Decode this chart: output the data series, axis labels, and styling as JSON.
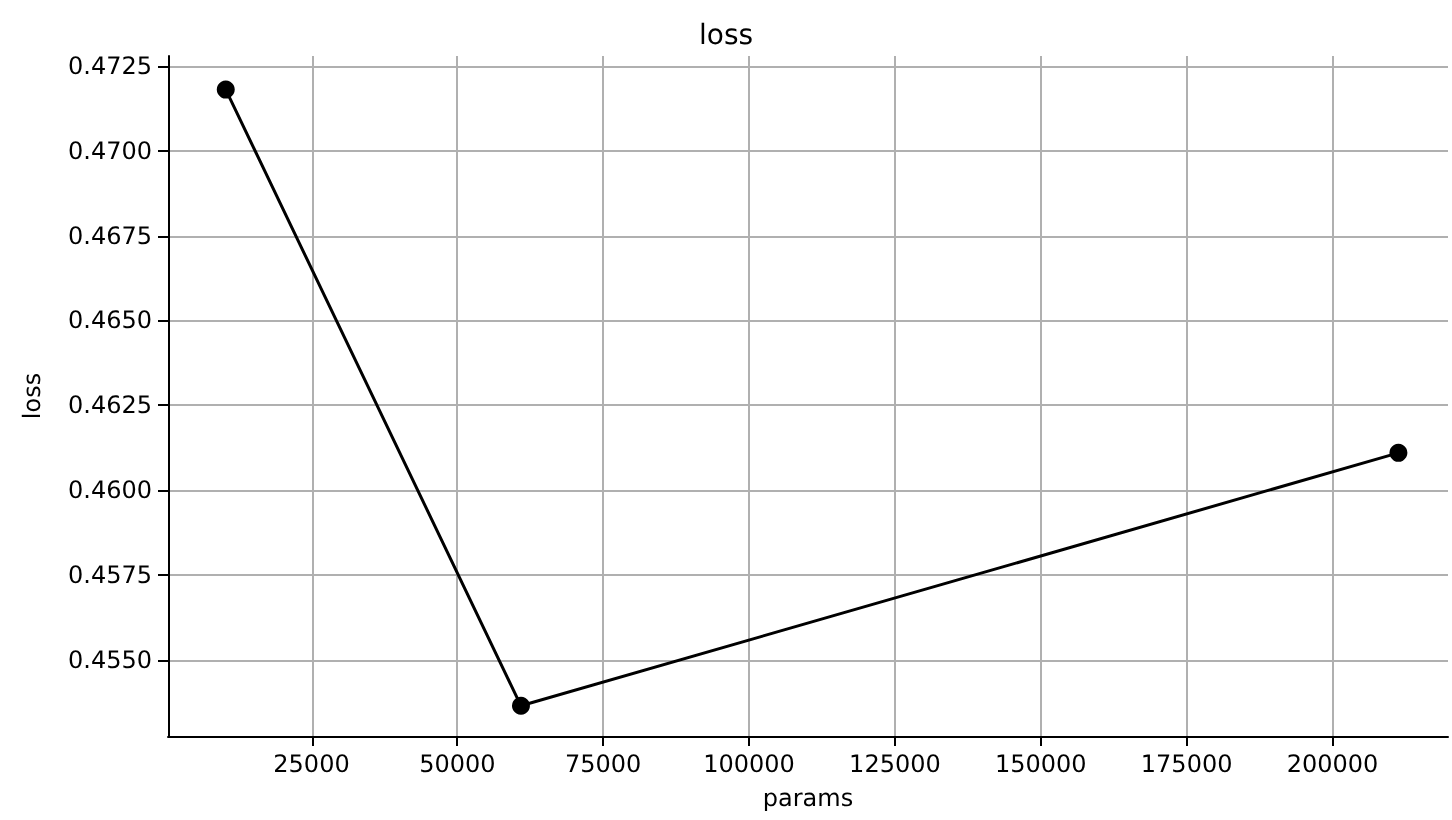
{
  "chart_data": {
    "type": "line",
    "title": "loss",
    "xlabel": "params",
    "ylabel": "loss",
    "x": [
      10300,
      60900,
      211300
    ],
    "series": [
      {
        "color": "#000000",
        "values": [
          0.4718,
          0.45365,
          0.4611
        ]
      }
    ],
    "xlim": [
      400,
      219800
    ],
    "xticks": [
      25000,
      50000,
      75000,
      100000,
      125000,
      150000,
      175000,
      200000
    ],
    "ylim": [
      0.45276,
      0.47279
    ],
    "yticks": [
      {
        "value": 0.455,
        "label": "0.4550"
      },
      {
        "value": 0.4575,
        "label": "0.4575"
      },
      {
        "value": 0.46,
        "label": "0.4600"
      },
      {
        "value": 0.4625,
        "label": "0.4625"
      },
      {
        "value": 0.465,
        "label": "0.4650"
      },
      {
        "value": 0.4675,
        "label": "0.4675"
      },
      {
        "value": 0.47,
        "label": "0.4700"
      },
      {
        "value": 0.4725,
        "label": "0.4725"
      }
    ],
    "grid": true,
    "marker": "circle",
    "line_style": "solid"
  }
}
